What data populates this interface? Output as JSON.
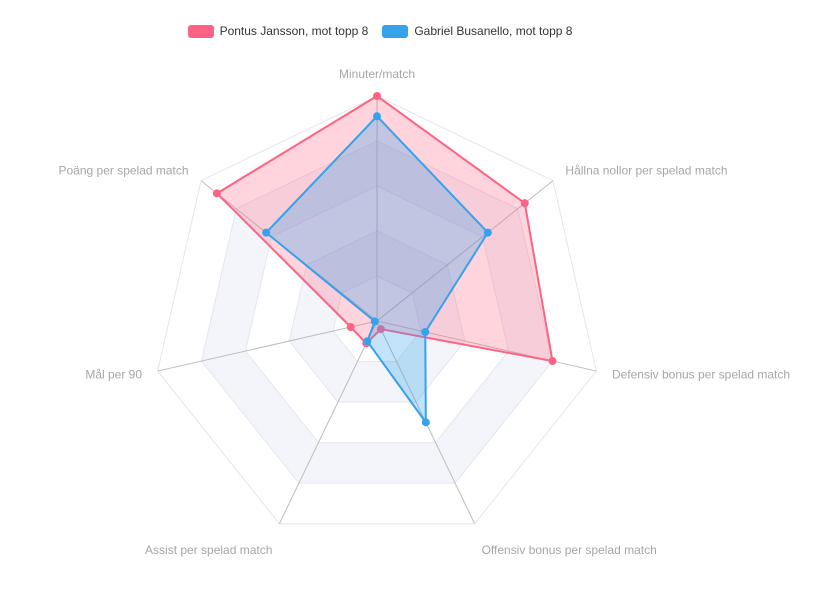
{
  "chart_data": {
    "type": "radar",
    "axes": [
      "Minuter/match",
      "Hållna nollor per spelad match",
      "Defensiv bonus per spelad match",
      "Offensiv bonus per spelad match",
      "Assist per spelad match",
      "Mål per 90",
      "Poäng per spelad match"
    ],
    "series": [
      {
        "name": "Pontus Jansson, mot topp 8",
        "values": [
          1.0,
          0.84,
          0.8,
          0.04,
          0.11,
          0.12,
          0.91
        ]
      },
      {
        "name": "Gabriel Busanello, mot topp 8",
        "values": [
          0.91,
          0.63,
          0.22,
          0.5,
          0.1,
          0.01,
          0.63
        ]
      }
    ],
    "range": [
      0,
      1
    ],
    "rings": 5,
    "legend_position": "top"
  },
  "colors": {
    "series_0_line": "#ff6384",
    "series_0_fill": "rgba(255,99,132,0.28)",
    "series_1_line": "#36a2eb",
    "series_1_fill": "rgba(54,162,235,0.30)",
    "grid": "#e3e6ee",
    "band": "#f3f5fa",
    "spoke": "#bdbdbd",
    "label": "#a6a6a6"
  }
}
